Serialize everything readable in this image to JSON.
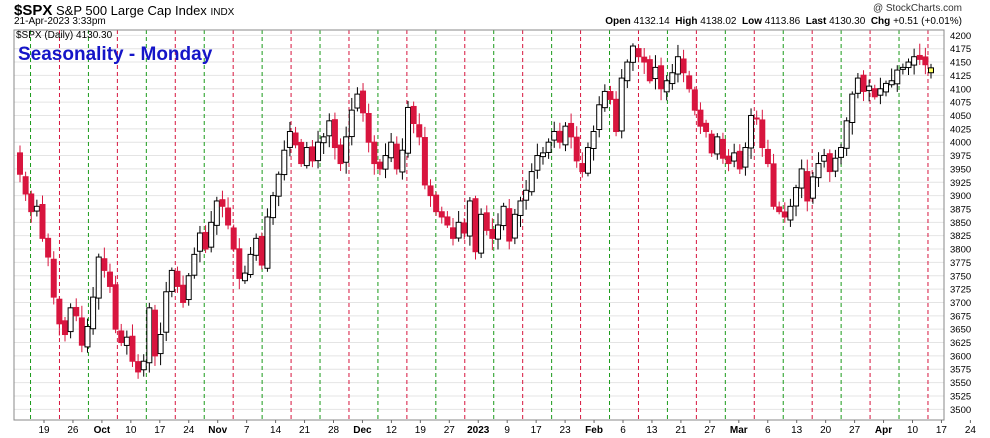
{
  "header": {
    "symbol": "$SPX",
    "name": "S&P 500 Large Cap Index",
    "exchange": "INDX",
    "date": "21-Apr-2023 3:33pm",
    "credit": "@ StockCharts.com",
    "open_label": "Open",
    "open": "4132.14",
    "high_label": "High",
    "high": "4138.02",
    "low_label": "Low",
    "low": "4113.86",
    "last_label": "Last",
    "last": "4130.30",
    "chg_label": "Chg",
    "chg": "+0.51 (+0.01%)"
  },
  "legend": "$SPX (Daily) 4130.30",
  "annotation": "Seasonality - Monday",
  "colors": {
    "up": "#000000",
    "down": "#d8153e",
    "green_line": "#1a9a1a",
    "red_line": "#d8153e",
    "title": "#1515c8",
    "highlight": "#ffff66"
  },
  "chart_data": {
    "type": "candlestick",
    "ylim": [
      3480,
      4210
    ],
    "y_ticks": [
      3500,
      3525,
      3550,
      3575,
      3600,
      3625,
      3650,
      3675,
      3700,
      3725,
      3750,
      3775,
      3800,
      3825,
      3850,
      3875,
      3900,
      3925,
      3950,
      3975,
      4000,
      4025,
      4050,
      4075,
      4100,
      4125,
      4150,
      4175,
      4200
    ],
    "x_tick_labels": [
      "19",
      "26",
      "Oct",
      "10",
      "17",
      "24",
      "Nov",
      "7",
      "14",
      "21",
      "28",
      "Dec",
      "12",
      "19",
      "27",
      "2023",
      "9",
      "17",
      "23",
      "Feb",
      "6",
      "13",
      "21",
      "27",
      "Mar",
      "6",
      "13",
      "20",
      "27",
      "Apr",
      "10",
      "17",
      "24"
    ],
    "x_tick_bold": [
      false,
      false,
      true,
      false,
      false,
      false,
      true,
      false,
      false,
      false,
      false,
      true,
      false,
      false,
      false,
      true,
      false,
      false,
      false,
      true,
      false,
      false,
      false,
      false,
      true,
      false,
      false,
      false,
      false,
      true,
      false,
      false,
      false
    ],
    "vline_colors": [
      "g",
      "r",
      "g",
      "r",
      "g",
      "r",
      "g",
      "r",
      "g",
      "r",
      "g",
      "r",
      "g",
      "r",
      "g",
      "r",
      "g",
      "r",
      "g",
      "r",
      "g",
      "r",
      "g",
      "r",
      "g",
      "r",
      "g",
      "r",
      "g",
      "r",
      "g",
      "r",
      "g",
      "r"
    ],
    "closes": [
      3940,
      3903,
      3870,
      3880,
      3820,
      3785,
      3710,
      3660,
      3640,
      3690,
      3675,
      3620,
      3655,
      3710,
      3785,
      3760,
      3730,
      3650,
      3625,
      3635,
      3590,
      3570,
      3590,
      3690,
      3600,
      3640,
      3720,
      3760,
      3730,
      3700,
      3750,
      3790,
      3830,
      3800,
      3850,
      3890,
      3880,
      3845,
      3800,
      3745,
      3755,
      3790,
      3820,
      3770,
      3860,
      3900,
      3940,
      3985,
      4020,
      3995,
      3960,
      3990,
      3965,
      4000,
      4010,
      4040,
      3990,
      3960,
      4010,
      4060,
      4090,
      4055,
      4000,
      3960,
      3950,
      3975,
      4000,
      3950,
      3985,
      4065,
      4035,
      4010,
      3920,
      3900,
      3870,
      3860,
      3845,
      3820,
      3850,
      3830,
      3890,
      3795,
      3865,
      3835,
      3820,
      3845,
      3880,
      3815,
      3865,
      3890,
      3910,
      3945,
      3975,
      3980,
      4000,
      4020,
      4000,
      4030,
      4010,
      3965,
      3945,
      3990,
      4020,
      4070,
      4095,
      4080,
      4020,
      4120,
      4150,
      4180,
      4160,
      4150,
      4115,
      4140,
      4100,
      4115,
      4130,
      4160,
      4130,
      4100,
      4060,
      4030,
      4020,
      3980,
      4010,
      3970,
      3960,
      3980,
      3950,
      3990,
      4050,
      4045,
      3990,
      3960,
      3880,
      3870,
      3860,
      3880,
      3915,
      3950,
      3890,
      3935,
      3960,
      3975,
      3945,
      3970,
      3990,
      4040,
      4090,
      4120,
      4095,
      4105,
      4085,
      4100,
      4110,
      4115,
      4135,
      4140,
      4150,
      4160,
      4155,
      4145,
      4130
    ]
  }
}
